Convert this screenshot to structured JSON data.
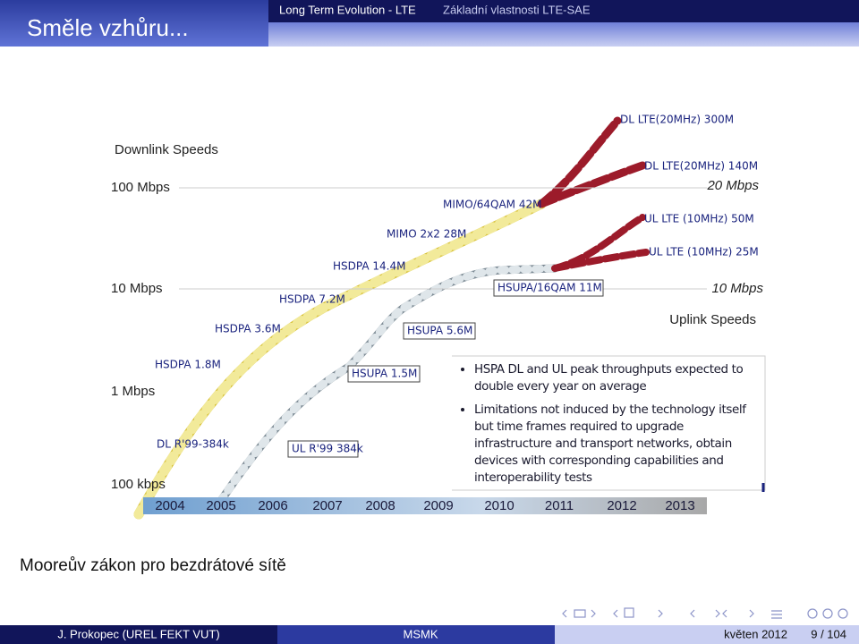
{
  "header": {
    "title": "Směle vzhůru...",
    "nav": [
      "Long Term Evolution - LTE",
      "Základní vlastnosti LTE-SAE"
    ]
  },
  "figure": {
    "left_axis": {
      "title": "Downlink Speeds",
      "ticks": [
        "100 Mbps",
        "10 Mbps",
        "1 Mbps",
        "100 kbps"
      ]
    },
    "right_axis": {
      "title": "Uplink Speeds",
      "ticks": [
        "20 Mbps",
        "10 Mbps"
      ]
    },
    "years": [
      2004,
      2005,
      2006,
      2007,
      2008,
      2009,
      2010,
      2011,
      2012,
      2013
    ],
    "labels": [
      "DL LTE(20MHz) 300M",
      "DL LTE(20MHz) 140M",
      "UL LTE (10MHz) 50M",
      "UL LTE (10MHz) 25M",
      "MIMO/64QAM 42M",
      "MIMO 2x2 28M",
      "HSDPA 14.4M",
      "HSDPA 7.2M",
      "HSDPA 3.6M",
      "HSDPA 1.8M",
      "DL R'99-384k",
      "HSUPA/16QAM 11M",
      "HSUPA 5.6M",
      "HSUPA 1.5M",
      "UL R'99 384k"
    ],
    "bullets": [
      "HSPA DL and UL peak throughputs expected to double every year on average",
      "Limitations not induced by the technology itself but time frames required to upgrade infrastructure and transport networks, obtain devices with corresponding capabilities and interoperability tests"
    ]
  },
  "caption": "Mooreův zákon pro bezdrátové sítě",
  "footer": {
    "author": "J. Prokopec (UREL FEKT VUT)",
    "course": "MSMK",
    "date": "květen 2012",
    "page": "9 / 104"
  }
}
